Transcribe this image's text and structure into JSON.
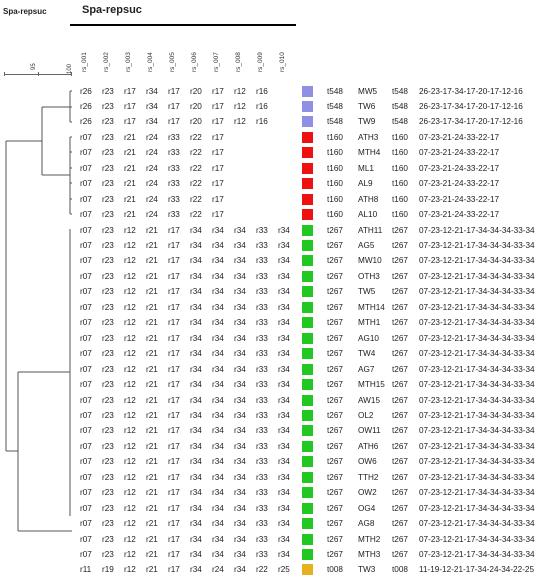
{
  "title_top": "Spa-repsuc",
  "title_header": "Spa-repsuc",
  "scale": {
    "labels": [
      "95",
      "100"
    ]
  },
  "columns": [
    "rs_001",
    "rs_002",
    "rs_003",
    "rs_004",
    "rs_005",
    "rs_006",
    "rs_007",
    "rs_008",
    "rs_009",
    "rs_010"
  ],
  "colors": {
    "t548": "#8f8fe6",
    "t160": "#ee1111",
    "t267": "#22c822",
    "t008": "#e6b020"
  },
  "rows": [
    {
      "r": [
        "r26",
        "r23",
        "r17",
        "r34",
        "r17",
        "r20",
        "r17",
        "r12",
        "r16",
        ""
      ],
      "type": "t548",
      "color_key": "t548",
      "isolate": "MW5",
      "type2": "t548",
      "repeats": "26-23-17-34-17-20-17-12-16"
    },
    {
      "r": [
        "r26",
        "r23",
        "r17",
        "r34",
        "r17",
        "r20",
        "r17",
        "r12",
        "r16",
        ""
      ],
      "type": "t548",
      "color_key": "t548",
      "isolate": "TW6",
      "type2": "t548",
      "repeats": "26-23-17-34-17-20-17-12-16"
    },
    {
      "r": [
        "r26",
        "r23",
        "r17",
        "r34",
        "r17",
        "r20",
        "r17",
        "r12",
        "r16",
        ""
      ],
      "type": "t548",
      "color_key": "t548",
      "isolate": "TW9",
      "type2": "t548",
      "repeats": "26-23-17-34-17-20-17-12-16"
    },
    {
      "r": [
        "r07",
        "r23",
        "r21",
        "r24",
        "r33",
        "r22",
        "r17",
        "",
        "",
        ""
      ],
      "type": "t160",
      "color_key": "t160",
      "isolate": "ATH3",
      "type2": "t160",
      "repeats": "07-23-21-24-33-22-17"
    },
    {
      "r": [
        "r07",
        "r23",
        "r21",
        "r24",
        "r33",
        "r22",
        "r17",
        "",
        "",
        ""
      ],
      "type": "t160",
      "color_key": "t160",
      "isolate": "MTH4",
      "type2": "t160",
      "repeats": "07-23-21-24-33-22-17"
    },
    {
      "r": [
        "r07",
        "r23",
        "r21",
        "r24",
        "r33",
        "r22",
        "r17",
        "",
        "",
        ""
      ],
      "type": "t160",
      "color_key": "t160",
      "isolate": "ML1",
      "type2": "t160",
      "repeats": "07-23-21-24-33-22-17"
    },
    {
      "r": [
        "r07",
        "r23",
        "r21",
        "r24",
        "r33",
        "r22",
        "r17",
        "",
        "",
        ""
      ],
      "type": "t160",
      "color_key": "t160",
      "isolate": "AL9",
      "type2": "t160",
      "repeats": "07-23-21-24-33-22-17"
    },
    {
      "r": [
        "r07",
        "r23",
        "r21",
        "r24",
        "r33",
        "r22",
        "r17",
        "",
        "",
        ""
      ],
      "type": "t160",
      "color_key": "t160",
      "isolate": "ATH8",
      "type2": "t160",
      "repeats": "07-23-21-24-33-22-17"
    },
    {
      "r": [
        "r07",
        "r23",
        "r21",
        "r24",
        "r33",
        "r22",
        "r17",
        "",
        "",
        ""
      ],
      "type": "t160",
      "color_key": "t160",
      "isolate": "AL10",
      "type2": "t160",
      "repeats": "07-23-21-24-33-22-17"
    },
    {
      "r": [
        "r07",
        "r23",
        "r12",
        "r21",
        "r17",
        "r34",
        "r34",
        "r34",
        "r33",
        "r34"
      ],
      "type": "t267",
      "color_key": "t267",
      "isolate": "ATH11",
      "type2": "t267",
      "repeats": "07-23-12-21-17-34-34-34-33-34"
    },
    {
      "r": [
        "r07",
        "r23",
        "r12",
        "r21",
        "r17",
        "r34",
        "r34",
        "r34",
        "r33",
        "r34"
      ],
      "type": "t267",
      "color_key": "t267",
      "isolate": "AG5",
      "type2": "t267",
      "repeats": "07-23-12-21-17-34-34-34-33-34"
    },
    {
      "r": [
        "r07",
        "r23",
        "r12",
        "r21",
        "r17",
        "r34",
        "r34",
        "r34",
        "r33",
        "r34"
      ],
      "type": "t267",
      "color_key": "t267",
      "isolate": "MW10",
      "type2": "t267",
      "repeats": "07-23-12-21-17-34-34-34-33-34"
    },
    {
      "r": [
        "r07",
        "r23",
        "r12",
        "r21",
        "r17",
        "r34",
        "r34",
        "r34",
        "r33",
        "r34"
      ],
      "type": "t267",
      "color_key": "t267",
      "isolate": "OTH3",
      "type2": "t267",
      "repeats": "07-23-12-21-17-34-34-34-33-34"
    },
    {
      "r": [
        "r07",
        "r23",
        "r12",
        "r21",
        "r17",
        "r34",
        "r34",
        "r34",
        "r33",
        "r34"
      ],
      "type": "t267",
      "color_key": "t267",
      "isolate": "TW5",
      "type2": "t267",
      "repeats": "07-23-12-21-17-34-34-34-33-34"
    },
    {
      "r": [
        "r07",
        "r23",
        "r12",
        "r21",
        "r17",
        "r34",
        "r34",
        "r34",
        "r33",
        "r34"
      ],
      "type": "t267",
      "color_key": "t267",
      "isolate": "MTH14",
      "type2": "t267",
      "repeats": "07-23-12-21-17-34-34-34-33-34"
    },
    {
      "r": [
        "r07",
        "r23",
        "r12",
        "r21",
        "r17",
        "r34",
        "r34",
        "r34",
        "r33",
        "r34"
      ],
      "type": "t267",
      "color_key": "t267",
      "isolate": "MTH1",
      "type2": "t267",
      "repeats": "07-23-12-21-17-34-34-34-33-34"
    },
    {
      "r": [
        "r07",
        "r23",
        "r12",
        "r21",
        "r17",
        "r34",
        "r34",
        "r34",
        "r33",
        "r34"
      ],
      "type": "t267",
      "color_key": "t267",
      "isolate": "AG10",
      "type2": "t267",
      "repeats": "07-23-12-21-17-34-34-34-33-34"
    },
    {
      "r": [
        "r07",
        "r23",
        "r12",
        "r21",
        "r17",
        "r34",
        "r34",
        "r34",
        "r33",
        "r34"
      ],
      "type": "t267",
      "color_key": "t267",
      "isolate": "TW4",
      "type2": "t267",
      "repeats": "07-23-12-21-17-34-34-34-33-34"
    },
    {
      "r": [
        "r07",
        "r23",
        "r12",
        "r21",
        "r17",
        "r34",
        "r34",
        "r34",
        "r33",
        "r34"
      ],
      "type": "t267",
      "color_key": "t267",
      "isolate": "AG7",
      "type2": "t267",
      "repeats": "07-23-12-21-17-34-34-34-33-34"
    },
    {
      "r": [
        "r07",
        "r23",
        "r12",
        "r21",
        "r17",
        "r34",
        "r34",
        "r34",
        "r33",
        "r34"
      ],
      "type": "t267",
      "color_key": "t267",
      "isolate": "MTH15",
      "type2": "t267",
      "repeats": "07-23-12-21-17-34-34-34-33-34"
    },
    {
      "r": [
        "r07",
        "r23",
        "r12",
        "r21",
        "r17",
        "r34",
        "r34",
        "r34",
        "r33",
        "r34"
      ],
      "type": "t267",
      "color_key": "t267",
      "isolate": "AW15",
      "type2": "t267",
      "repeats": "07-23-12-21-17-34-34-34-33-34"
    },
    {
      "r": [
        "r07",
        "r23",
        "r12",
        "r21",
        "r17",
        "r34",
        "r34",
        "r34",
        "r33",
        "r34"
      ],
      "type": "t267",
      "color_key": "t267",
      "isolate": "OL2",
      "type2": "t267",
      "repeats": "07-23-12-21-17-34-34-34-33-34"
    },
    {
      "r": [
        "r07",
        "r23",
        "r12",
        "r21",
        "r17",
        "r34",
        "r34",
        "r34",
        "r33",
        "r34"
      ],
      "type": "t267",
      "color_key": "t267",
      "isolate": "OW11",
      "type2": "t267",
      "repeats": "07-23-12-21-17-34-34-34-33-34"
    },
    {
      "r": [
        "r07",
        "r23",
        "r12",
        "r21",
        "r17",
        "r34",
        "r34",
        "r34",
        "r33",
        "r34"
      ],
      "type": "t267",
      "color_key": "t267",
      "isolate": "ATH6",
      "type2": "t267",
      "repeats": "07-23-12-21-17-34-34-34-33-34"
    },
    {
      "r": [
        "r07",
        "r23",
        "r12",
        "r21",
        "r17",
        "r34",
        "r34",
        "r34",
        "r33",
        "r34"
      ],
      "type": "t267",
      "color_key": "t267",
      "isolate": "OW6",
      "type2": "t267",
      "repeats": "07-23-12-21-17-34-34-34-33-34"
    },
    {
      "r": [
        "r07",
        "r23",
        "r12",
        "r21",
        "r17",
        "r34",
        "r34",
        "r34",
        "r33",
        "r34"
      ],
      "type": "t267",
      "color_key": "t267",
      "isolate": "TTH2",
      "type2": "t267",
      "repeats": "07-23-12-21-17-34-34-34-33-34"
    },
    {
      "r": [
        "r07",
        "r23",
        "r12",
        "r21",
        "r17",
        "r34",
        "r34",
        "r34",
        "r33",
        "r34"
      ],
      "type": "t267",
      "color_key": "t267",
      "isolate": "OW2",
      "type2": "t267",
      "repeats": "07-23-12-21-17-34-34-34-33-34"
    },
    {
      "r": [
        "r07",
        "r23",
        "r12",
        "r21",
        "r17",
        "r34",
        "r34",
        "r34",
        "r33",
        "r34"
      ],
      "type": "t267",
      "color_key": "t267",
      "isolate": "OG4",
      "type2": "t267",
      "repeats": "07-23-12-21-17-34-34-34-33-34"
    },
    {
      "r": [
        "r07",
        "r23",
        "r12",
        "r21",
        "r17",
        "r34",
        "r34",
        "r34",
        "r33",
        "r34"
      ],
      "type": "t267",
      "color_key": "t267",
      "isolate": "AG8",
      "type2": "t267",
      "repeats": "07-23-12-21-17-34-34-34-33-34"
    },
    {
      "r": [
        "r07",
        "r23",
        "r12",
        "r21",
        "r17",
        "r34",
        "r34",
        "r34",
        "r33",
        "r34"
      ],
      "type": "t267",
      "color_key": "t267",
      "isolate": "MTH2",
      "type2": "t267",
      "repeats": "07-23-12-21-17-34-34-34-33-34"
    },
    {
      "r": [
        "r07",
        "r23",
        "r12",
        "r21",
        "r17",
        "r34",
        "r34",
        "r34",
        "r33",
        "r34"
      ],
      "type": "t267",
      "color_key": "t267",
      "isolate": "MTH3",
      "type2": "t267",
      "repeats": "07-23-12-21-17-34-34-34-33-34"
    },
    {
      "r": [
        "r11",
        "r19",
        "r12",
        "r21",
        "r17",
        "r34",
        "r24",
        "r34",
        "r22",
        "r25"
      ],
      "type": "t008",
      "color_key": "t008",
      "isolate": "TW3",
      "type2": "t008",
      "repeats": "11-19-12-21-17-34-24-34-22-25"
    }
  ]
}
